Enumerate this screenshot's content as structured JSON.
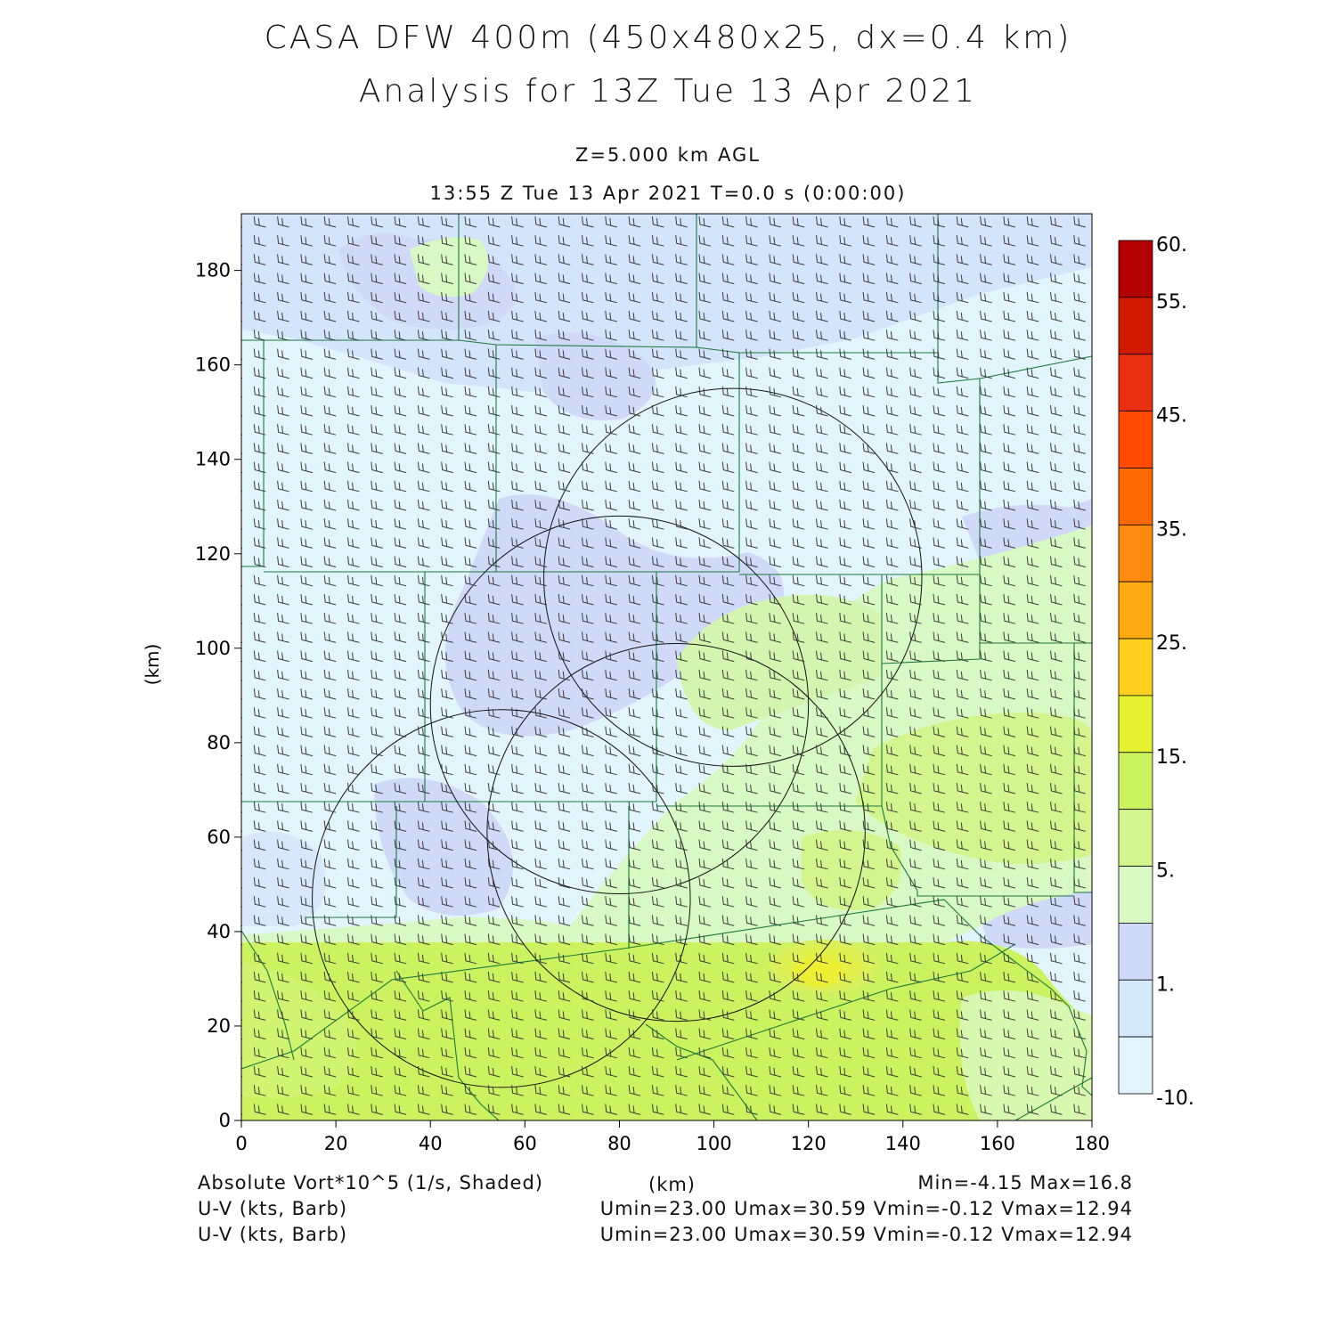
{
  "header": {
    "title_line1": "CASA DFW 400m (450x480x25, dx=0.4 km)",
    "title_line2": "Analysis for 13Z Tue 13 Apr 2021",
    "level": "Z=5.000 km AGL",
    "time": "13:55 Z Tue 13 Apr 2021    T=0.0 s (0:00:00)"
  },
  "axes": {
    "x_ticks": [
      "0",
      "20",
      "40",
      "60",
      "80",
      "100",
      "120",
      "140",
      "160",
      "180"
    ],
    "y_ticks": [
      "0",
      "20",
      "40",
      "60",
      "80",
      "100",
      "120",
      "140",
      "160",
      "180"
    ],
    "x_unit": "(km)",
    "y_unit": "(km)",
    "x_range": [
      0,
      180
    ],
    "y_range": [
      0,
      192
    ]
  },
  "colorbar": {
    "labels": [
      "60.",
      "55.",
      "45.",
      "35.",
      "25.",
      "15.",
      "5.",
      "1.",
      "-10."
    ],
    "colors": [
      "#b30000",
      "#d01a00",
      "#e83010",
      "#ff4a00",
      "#ff6a00",
      "#ff8a10",
      "#ffaa10",
      "#ffd020",
      "#e6f230",
      "#ccf260",
      "#d4f58e",
      "#d8f8c4",
      "#d0daf8",
      "#d4eafa",
      "#e2f4fc"
    ]
  },
  "footer": {
    "field_label": "Absolute Vort*10^5 (1/s, Shaded)",
    "km_label": "(km)",
    "minmax": "Min=-4.15 Max=16.8",
    "barb1_label": "U-V (kts, Barb)",
    "barb1_stats": "Umin=23.00 Umax=30.59 Vmin=-0.12 Vmax=12.94",
    "barb2_label": "U-V (kts, Barb)",
    "barb2_stats": "Umin=23.00 Umax=30.59 Vmin=-0.12 Vmax=12.94"
  },
  "map": {
    "radar_rings": [
      {
        "cx_km": 104,
        "cy_km": 115,
        "r_km": 40
      },
      {
        "cx_km": 80,
        "cy_km": 88,
        "r_km": 40
      },
      {
        "cx_km": 92,
        "cy_km": 61,
        "r_km": 40
      },
      {
        "cx_km": 55,
        "cy_km": 47,
        "r_km": 40
      }
    ]
  }
}
